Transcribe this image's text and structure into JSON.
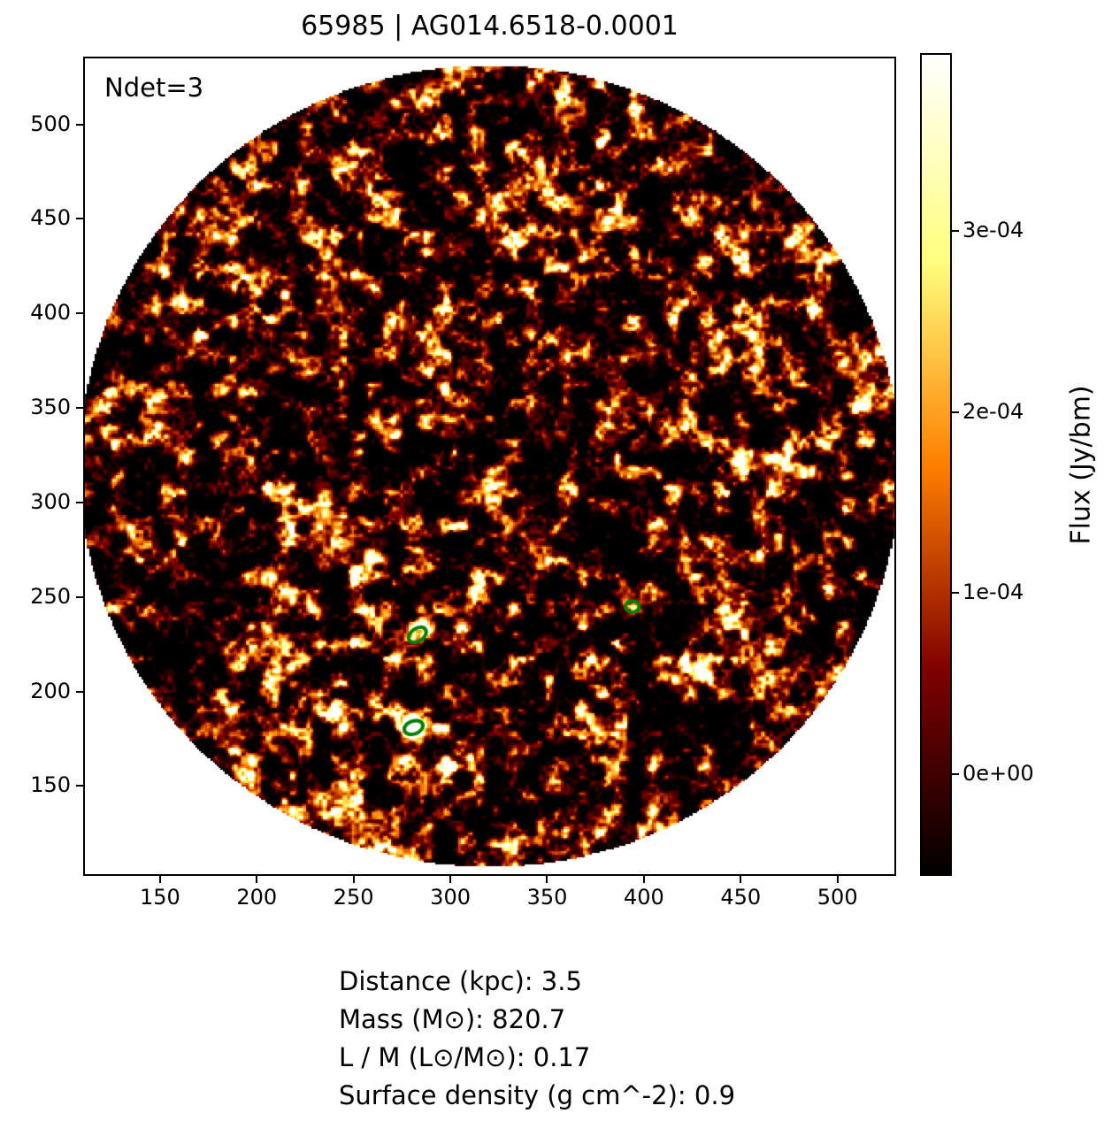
{
  "figure": {
    "title": "65985 | AG014.6518-0.0001",
    "annotation": "Ndet=3",
    "info": {
      "distance": "Distance (kpc): 3.5",
      "mass": "Mass (M⊙): 820.7",
      "l_over_m": "L / M (L⊙/M⊙): 0.17",
      "surface_density": "Surface density (g cm^-2): 0.9"
    }
  },
  "chart_data": {
    "type": "heatmap",
    "title": "65985 | AG014.6518-0.0001",
    "annotation": "Ndet=3",
    "xlim": [
      110.3,
      530.3
    ],
    "ylim": [
      102.5,
      535.8
    ],
    "x_ticks": [
      150,
      200,
      250,
      300,
      350,
      400,
      450,
      500
    ],
    "y_ticks": [
      150,
      200,
      250,
      300,
      350,
      400,
      450,
      500
    ],
    "colormap": "afmhot",
    "field": {
      "shape": "circle",
      "center": [
        320.3,
        319.2
      ],
      "radius": 212,
      "outside_color": "#ffffff",
      "description": "noisy dust-continuum flux map, mottled bright clumps on dark background"
    },
    "colorbar": {
      "label": "Flux (Jy/bm)",
      "vmin": -5.6e-05,
      "vmax": 0.000398,
      "tick_values": [
        0,
        0.0001,
        0.0002,
        0.0003
      ],
      "tick_labels": [
        "0e+00",
        "1e-04",
        "2e-04",
        "3e-04"
      ]
    },
    "detections": {
      "count": 3,
      "marker_color": "#008000",
      "ellipses": [
        {
          "x": 283,
          "y": 230,
          "rx": 5.0,
          "ry": 3.4,
          "angle_deg": -35
        },
        {
          "x": 394,
          "y": 245,
          "rx": 3.6,
          "ry": 3.0,
          "angle_deg": 0
        },
        {
          "x": 281,
          "y": 181,
          "rx": 5.0,
          "ry": 3.4,
          "angle_deg": -20
        }
      ]
    }
  }
}
